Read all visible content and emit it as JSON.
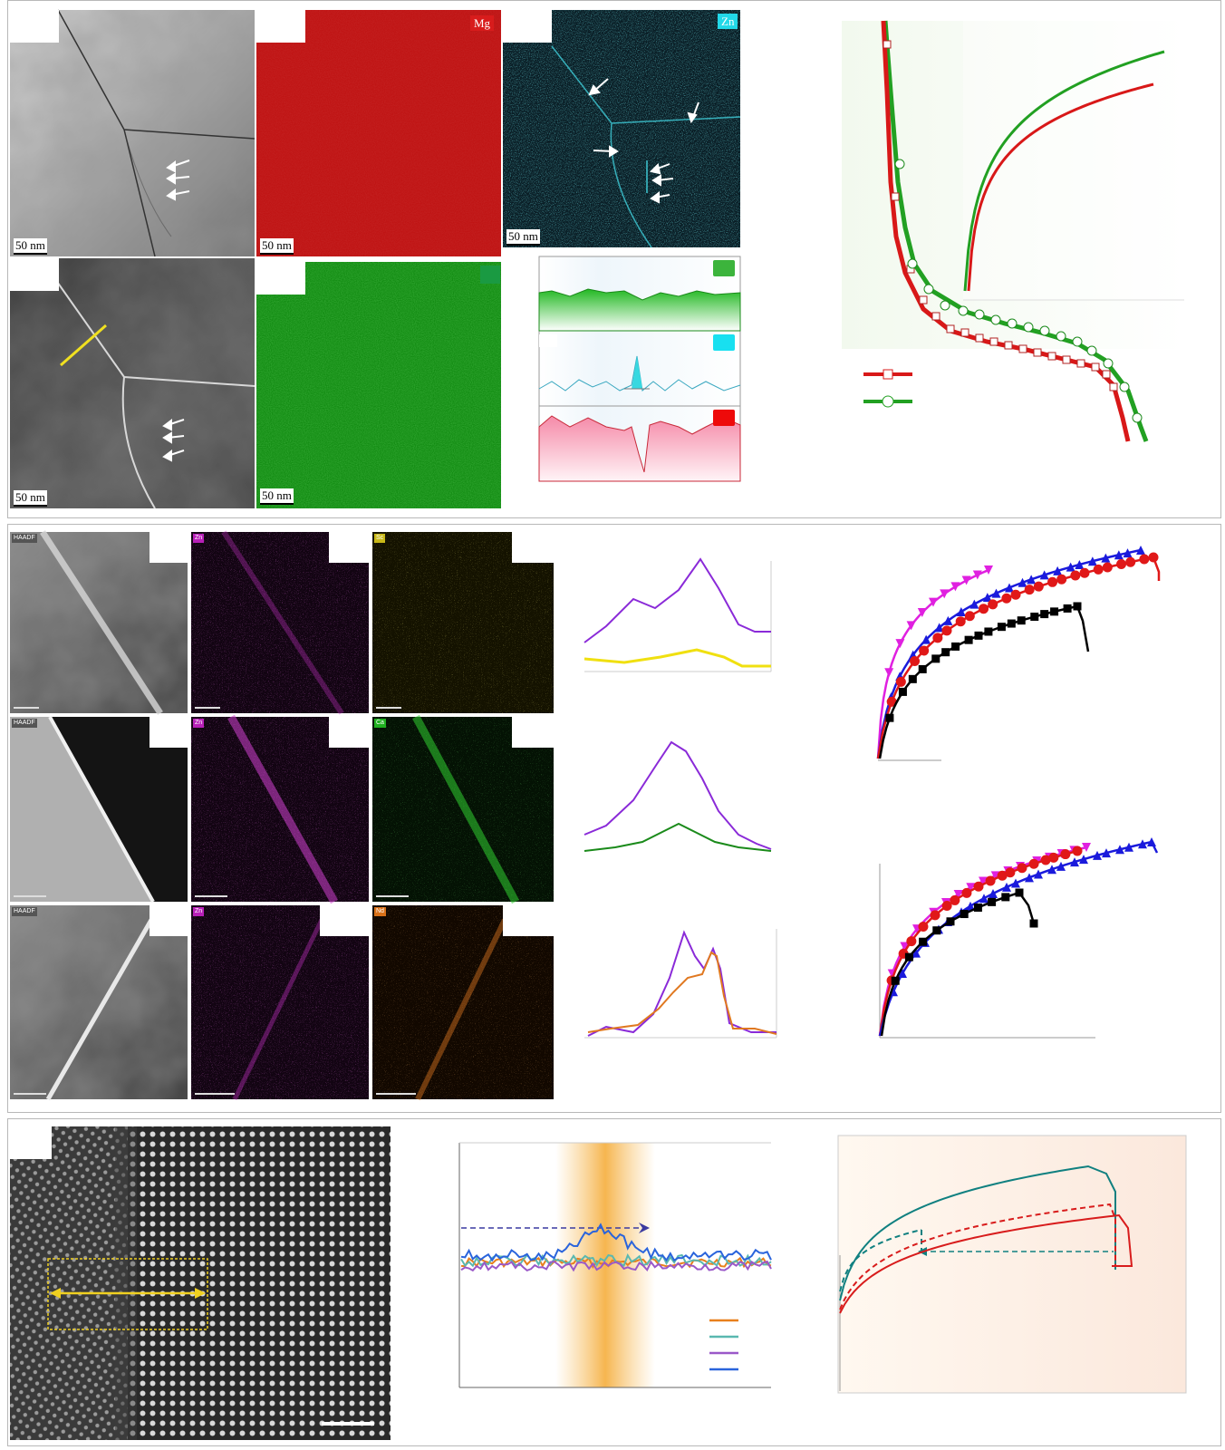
{
  "panel1": {
    "scalebars": [
      "50 nm",
      "50 nm",
      "50 nm",
      "50 nm",
      "50 nm"
    ],
    "map_labels": {
      "mg": "Mg",
      "zn": "Zn"
    },
    "colors": {
      "mg": "#cc1a1a",
      "zn": "#22c8d8",
      "green": "#1ea01e",
      "red_curve": "#d81818",
      "green_curve": "#22a022"
    }
  },
  "panel2": {
    "map_labels": [
      "HAADF",
      "Zn",
      "Sc",
      "HAADF",
      "Zn",
      "Ca",
      "HAADF",
      "Zn",
      "Nd"
    ],
    "colors": {
      "zn": "#cc22cc",
      "sc": "#d8c820",
      "ca": "#22b822",
      "nd": "#e07820"
    }
  },
  "panel3": {
    "colors": {
      "orange": "#e8801c",
      "teal": "#5ab8b0",
      "purple": "#9a58c8",
      "blue": "#2a64dc",
      "teal_curve": "#108080",
      "red_curve": "#d81c1c"
    }
  },
  "chart_data": [
    {
      "type": "line",
      "series": [
        {
          "name": "",
          "marker": "square",
          "color": "red"
        },
        {
          "name": "",
          "marker": "circle",
          "color": "green"
        }
      ],
      "xlabel": "",
      "ylabel": ""
    },
    {
      "type": "line",
      "series": [
        {
          "name": "",
          "color": "purple"
        },
        {
          "name": "",
          "color": "yellow"
        }
      ],
      "xlabel": "",
      "ylabel": ""
    },
    {
      "type": "line",
      "series": [
        {
          "name": "",
          "color": "purple"
        },
        {
          "name": "",
          "color": "green"
        }
      ],
      "xlabel": "",
      "ylabel": ""
    },
    {
      "type": "line",
      "series": [
        {
          "name": "",
          "color": "purple"
        },
        {
          "name": "",
          "color": "orange"
        }
      ],
      "xlabel": "",
      "ylabel": ""
    },
    {
      "type": "line",
      "series": [
        {
          "name": "",
          "marker": "triangle-down",
          "color": "magenta"
        },
        {
          "name": "",
          "marker": "triangle-up",
          "color": "blue"
        },
        {
          "name": "",
          "marker": "circle",
          "color": "red"
        },
        {
          "name": "",
          "marker": "square",
          "color": "black"
        }
      ],
      "xlabel": "",
      "ylabel": ""
    },
    {
      "type": "line",
      "series": [
        {
          "name": "",
          "marker": "triangle-down",
          "color": "magenta"
        },
        {
          "name": "",
          "marker": "circle",
          "color": "red"
        },
        {
          "name": "",
          "marker": "triangle-up",
          "color": "blue"
        },
        {
          "name": "",
          "marker": "square",
          "color": "black"
        }
      ],
      "xlabel": "",
      "ylabel": ""
    },
    {
      "type": "line",
      "series": [
        {
          "name": "",
          "color": "orange"
        },
        {
          "name": "",
          "color": "teal"
        },
        {
          "name": "",
          "color": "purple"
        },
        {
          "name": "",
          "color": "blue"
        }
      ],
      "xlabel": "",
      "ylabel": ""
    },
    {
      "type": "line",
      "series": [
        {
          "name": "",
          "style": "solid",
          "color": "teal"
        },
        {
          "name": "",
          "style": "dashed",
          "color": "teal"
        },
        {
          "name": "",
          "style": "solid",
          "color": "red"
        },
        {
          "name": "",
          "style": "dashed",
          "color": "red"
        }
      ],
      "xlabel": "",
      "ylabel": ""
    }
  ]
}
